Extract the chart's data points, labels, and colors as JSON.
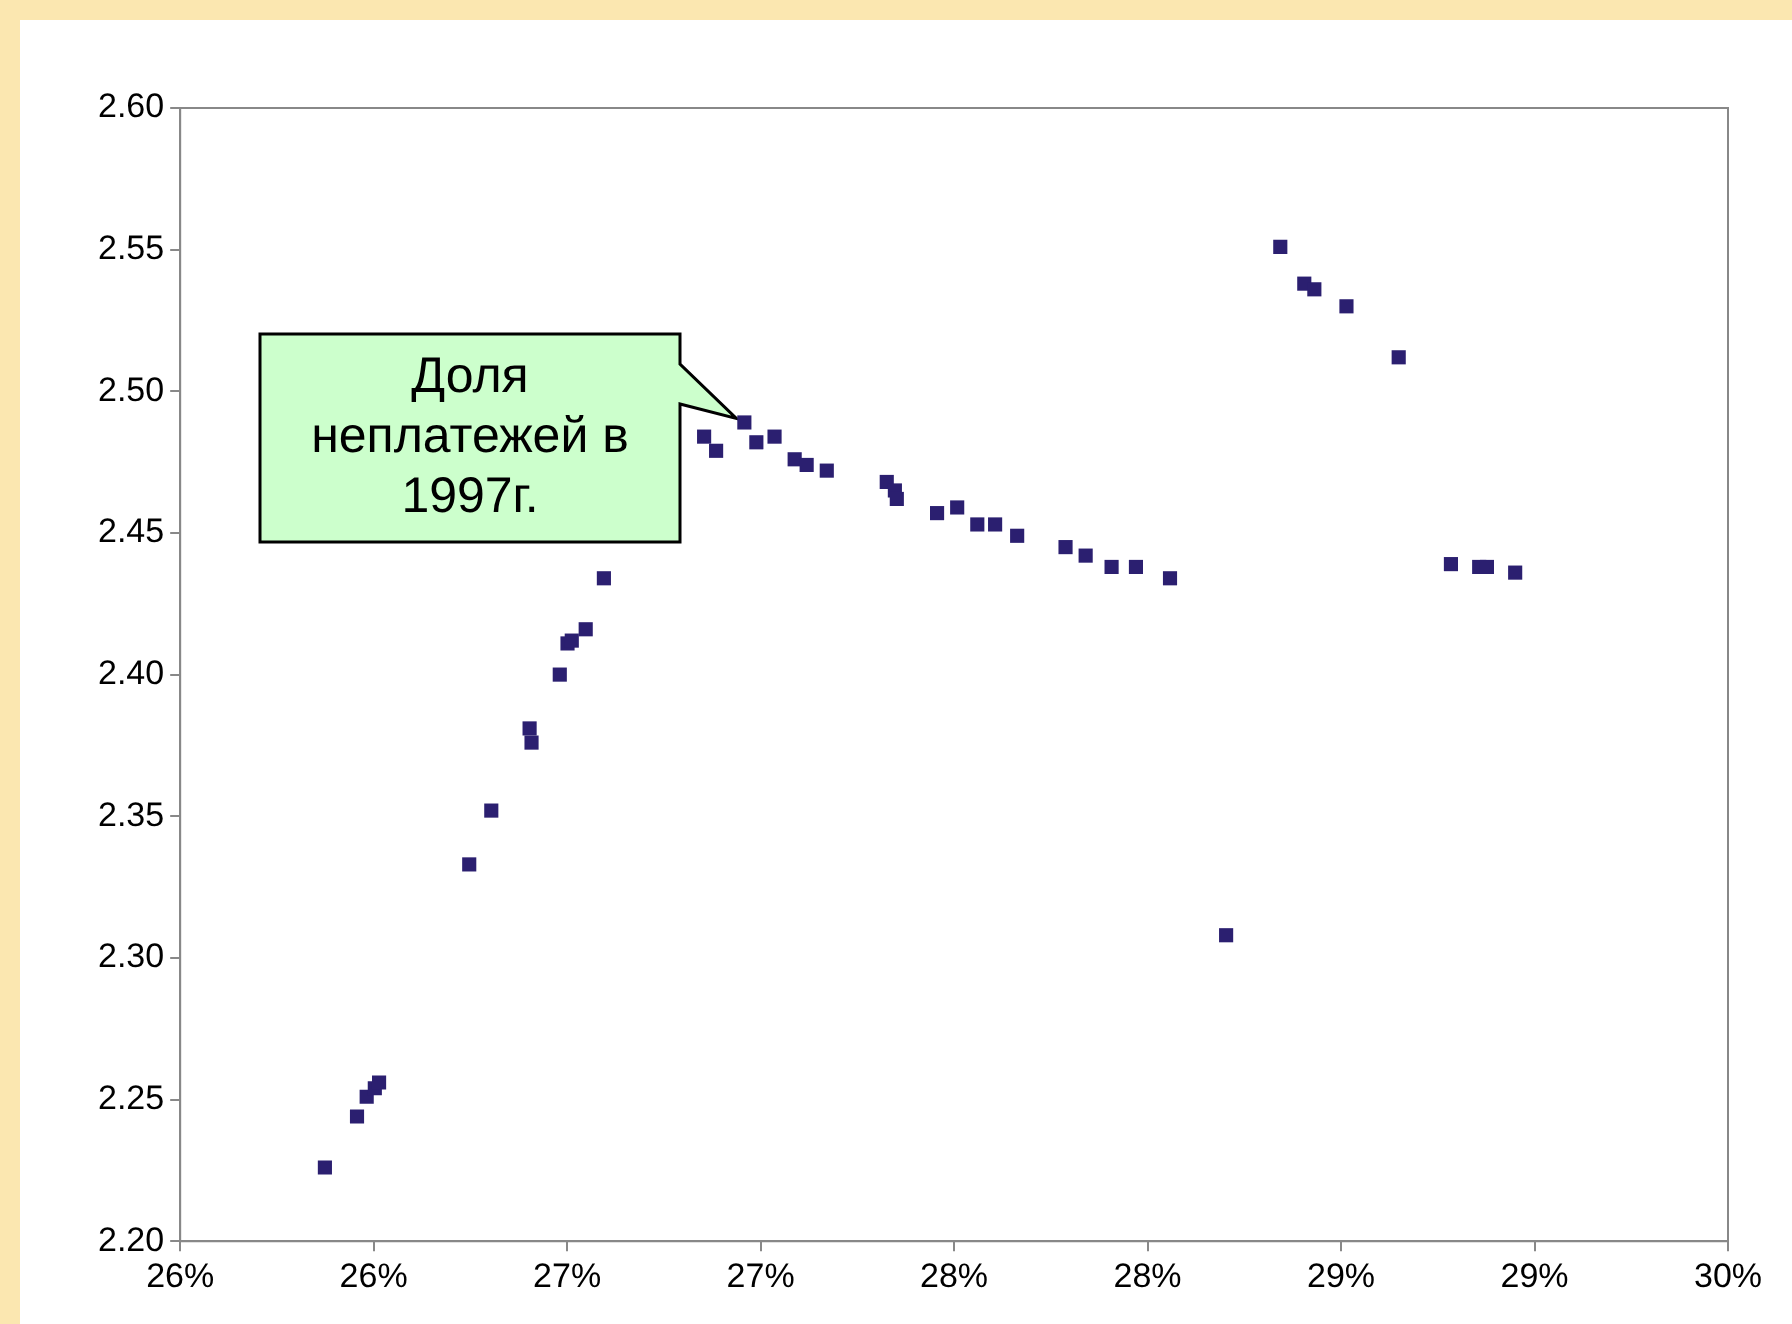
{
  "chart_data": {
    "type": "scatter",
    "marker": "square",
    "grid": false,
    "legend": false,
    "x": [
      26.374,
      26.457,
      26.482,
      26.503,
      26.514,
      26.747,
      26.804,
      26.903,
      26.908,
      26.981,
      27.001,
      27.012,
      27.048,
      27.095,
      27.354,
      27.385,
      27.458,
      27.489,
      27.536,
      27.588,
      27.619,
      27.671,
      27.826,
      27.847,
      27.852,
      27.956,
      28.008,
      28.06,
      28.106,
      28.163,
      28.288,
      28.34,
      28.407,
      28.47,
      28.558,
      28.703,
      28.843,
      28.905,
      28.931,
      29.014,
      29.149,
      29.284,
      29.357,
      29.377,
      29.45
    ],
    "series": [
      {
        "color": "#2b1f70",
        "values": [
          2.226,
          2.244,
          2.251,
          2.254,
          2.256,
          2.333,
          2.352,
          2.381,
          2.376,
          2.4,
          2.411,
          2.412,
          2.416,
          2.434,
          2.484,
          2.479,
          2.489,
          2.482,
          2.484,
          2.476,
          2.474,
          2.472,
          2.468,
          2.465,
          2.462,
          2.457,
          2.459,
          2.453,
          2.453,
          2.449,
          2.445,
          2.442,
          2.438,
          2.438,
          2.434,
          2.308,
          2.551,
          2.538,
          2.536,
          2.53,
          2.512,
          2.439,
          2.438,
          2.438,
          2.436
        ]
      }
    ],
    "xlim": [
      26,
      30
    ],
    "xticks": [
      {
        "value": 26,
        "label": "26%"
      },
      {
        "value": 26.5,
        "label": "26%"
      },
      {
        "value": 27,
        "label": "27%"
      },
      {
        "value": 27.5,
        "label": "27%"
      },
      {
        "value": 28,
        "label": "28%"
      },
      {
        "value": 28.5,
        "label": "28%"
      },
      {
        "value": 29,
        "label": "29%"
      },
      {
        "value": 29.5,
        "label": "29%"
      },
      {
        "value": 30,
        "label": "30%"
      }
    ],
    "ylim": [
      2.2,
      2.6
    ],
    "yticks": [
      {
        "value": 2.2,
        "label": "2.20"
      },
      {
        "value": 2.25,
        "label": "2.25"
      },
      {
        "value": 2.3,
        "label": "2.30"
      },
      {
        "value": 2.35,
        "label": "2.35"
      },
      {
        "value": 2.4,
        "label": "2.40"
      },
      {
        "value": 2.45,
        "label": "2.45"
      },
      {
        "value": 2.5,
        "label": "2.50"
      },
      {
        "value": 2.55,
        "label": "2.55"
      },
      {
        "value": 2.6,
        "label": "2.60"
      }
    ],
    "annotations": [
      {
        "text": "Доля неплатежей в 1997г.",
        "x": 27.458,
        "y": 2.489
      }
    ]
  }
}
